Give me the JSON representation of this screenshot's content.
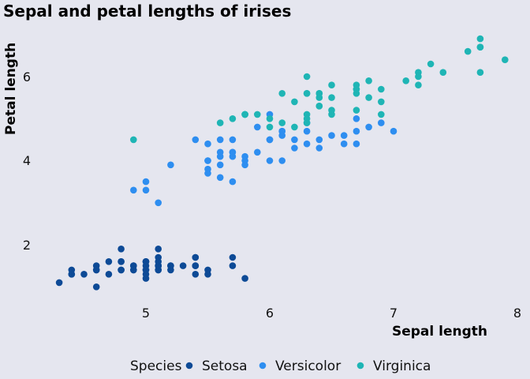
{
  "chart_data": {
    "type": "scatter",
    "title": "Sepal and petal lengths of irises",
    "xlabel": "Sepal length",
    "ylabel": "Petal length",
    "xlim": [
      4.2,
      8.0
    ],
    "ylim": [
      0.7,
      7.2
    ],
    "xticks": [
      "5",
      "6",
      "7",
      "8"
    ],
    "yticks": [
      "2",
      "4",
      "6"
    ],
    "grid": false,
    "legend": {
      "title": "Species",
      "placement": "bottom"
    },
    "series": [
      {
        "name": "Setosa",
        "color": "#0d4a96",
        "points": [
          [
            5.1,
            1.4
          ],
          [
            4.9,
            1.4
          ],
          [
            4.7,
            1.3
          ],
          [
            4.6,
            1.5
          ],
          [
            5.0,
            1.4
          ],
          [
            5.4,
            1.7
          ],
          [
            4.6,
            1.4
          ],
          [
            5.0,
            1.5
          ],
          [
            4.4,
            1.4
          ],
          [
            4.9,
            1.5
          ],
          [
            5.4,
            1.5
          ],
          [
            4.8,
            1.6
          ],
          [
            4.8,
            1.4
          ],
          [
            4.3,
            1.1
          ],
          [
            5.8,
            1.2
          ],
          [
            5.7,
            1.5
          ],
          [
            5.4,
            1.3
          ],
          [
            5.1,
            1.4
          ],
          [
            5.7,
            1.7
          ],
          [
            5.1,
            1.5
          ],
          [
            5.4,
            1.7
          ],
          [
            5.1,
            1.5
          ],
          [
            4.6,
            1.0
          ],
          [
            5.1,
            1.7
          ],
          [
            4.8,
            1.9
          ],
          [
            5.0,
            1.6
          ],
          [
            5.0,
            1.6
          ],
          [
            5.2,
            1.5
          ],
          [
            5.2,
            1.4
          ],
          [
            4.7,
            1.6
          ],
          [
            4.8,
            1.6
          ],
          [
            5.4,
            1.5
          ],
          [
            5.2,
            1.5
          ],
          [
            5.5,
            1.4
          ],
          [
            4.9,
            1.5
          ],
          [
            5.0,
            1.2
          ],
          [
            5.5,
            1.3
          ],
          [
            4.9,
            1.4
          ],
          [
            4.4,
            1.3
          ],
          [
            5.1,
            1.5
          ],
          [
            5.0,
            1.3
          ],
          [
            4.5,
            1.3
          ],
          [
            4.4,
            1.3
          ],
          [
            5.0,
            1.6
          ],
          [
            5.1,
            1.9
          ],
          [
            4.8,
            1.4
          ],
          [
            5.1,
            1.6
          ],
          [
            4.6,
            1.4
          ],
          [
            5.3,
            1.5
          ],
          [
            5.0,
            1.4
          ]
        ]
      },
      {
        "name": "Versicolor",
        "color": "#2e8ef0",
        "points": [
          [
            7.0,
            4.7
          ],
          [
            6.4,
            4.5
          ],
          [
            6.9,
            4.9
          ],
          [
            5.5,
            4.0
          ],
          [
            6.5,
            4.6
          ],
          [
            5.7,
            4.5
          ],
          [
            6.3,
            4.7
          ],
          [
            4.9,
            3.3
          ],
          [
            6.6,
            4.6
          ],
          [
            5.2,
            3.9
          ],
          [
            5.0,
            3.5
          ],
          [
            5.9,
            4.2
          ],
          [
            6.0,
            4.0
          ],
          [
            6.1,
            4.7
          ],
          [
            5.6,
            3.6
          ],
          [
            6.7,
            4.4
          ],
          [
            5.6,
            4.5
          ],
          [
            5.8,
            4.1
          ],
          [
            6.2,
            4.5
          ],
          [
            5.6,
            3.9
          ],
          [
            5.9,
            4.8
          ],
          [
            6.1,
            4.0
          ],
          [
            6.3,
            4.9
          ],
          [
            6.1,
            4.7
          ],
          [
            6.4,
            4.3
          ],
          [
            6.6,
            4.4
          ],
          [
            6.8,
            4.8
          ],
          [
            6.7,
            5.0
          ],
          [
            6.0,
            4.5
          ],
          [
            5.7,
            3.5
          ],
          [
            5.5,
            3.8
          ],
          [
            5.5,
            3.7
          ],
          [
            5.8,
            3.9
          ],
          [
            6.0,
            5.1
          ],
          [
            5.4,
            4.5
          ],
          [
            6.0,
            4.5
          ],
          [
            6.7,
            4.7
          ],
          [
            6.3,
            4.4
          ],
          [
            5.6,
            4.1
          ],
          [
            5.5,
            4.0
          ],
          [
            5.5,
            4.4
          ],
          [
            6.1,
            4.6
          ],
          [
            5.8,
            4.0
          ],
          [
            5.0,
            3.3
          ],
          [
            5.6,
            4.2
          ],
          [
            5.7,
            4.2
          ],
          [
            5.7,
            4.2
          ],
          [
            6.2,
            4.3
          ],
          [
            5.1,
            3.0
          ],
          [
            5.7,
            4.1
          ]
        ]
      },
      {
        "name": "Virginica",
        "color": "#1fb5b5",
        "points": [
          [
            6.3,
            6.0
          ],
          [
            5.8,
            5.1
          ],
          [
            7.1,
            5.9
          ],
          [
            6.3,
            5.6
          ],
          [
            6.5,
            5.8
          ],
          [
            7.6,
            6.6
          ],
          [
            4.9,
            4.5
          ],
          [
            7.3,
            6.3
          ],
          [
            6.7,
            5.8
          ],
          [
            7.2,
            6.1
          ],
          [
            6.5,
            5.1
          ],
          [
            6.4,
            5.3
          ],
          [
            6.8,
            5.5
          ],
          [
            5.7,
            5.0
          ],
          [
            5.8,
            5.1
          ],
          [
            6.4,
            5.3
          ],
          [
            6.5,
            5.5
          ],
          [
            7.7,
            6.7
          ],
          [
            7.7,
            6.9
          ],
          [
            6.0,
            5.0
          ],
          [
            6.9,
            5.7
          ],
          [
            5.6,
            4.9
          ],
          [
            7.7,
            6.7
          ],
          [
            6.3,
            4.9
          ],
          [
            6.7,
            5.7
          ],
          [
            7.2,
            6.0
          ],
          [
            6.2,
            4.8
          ],
          [
            6.1,
            4.9
          ],
          [
            6.4,
            5.6
          ],
          [
            7.2,
            5.8
          ],
          [
            7.4,
            6.1
          ],
          [
            7.9,
            6.4
          ],
          [
            6.4,
            5.6
          ],
          [
            6.3,
            5.1
          ],
          [
            6.1,
            5.6
          ],
          [
            7.7,
            6.1
          ],
          [
            6.3,
            5.6
          ],
          [
            6.4,
            5.5
          ],
          [
            6.0,
            4.8
          ],
          [
            6.9,
            5.4
          ],
          [
            6.7,
            5.6
          ],
          [
            6.9,
            5.1
          ],
          [
            5.8,
            5.1
          ],
          [
            6.8,
            5.9
          ],
          [
            6.7,
            5.7
          ],
          [
            6.7,
            5.2
          ],
          [
            6.3,
            5.0
          ],
          [
            6.5,
            5.2
          ],
          [
            6.2,
            5.4
          ],
          [
            5.9,
            5.1
          ]
        ]
      }
    ]
  }
}
